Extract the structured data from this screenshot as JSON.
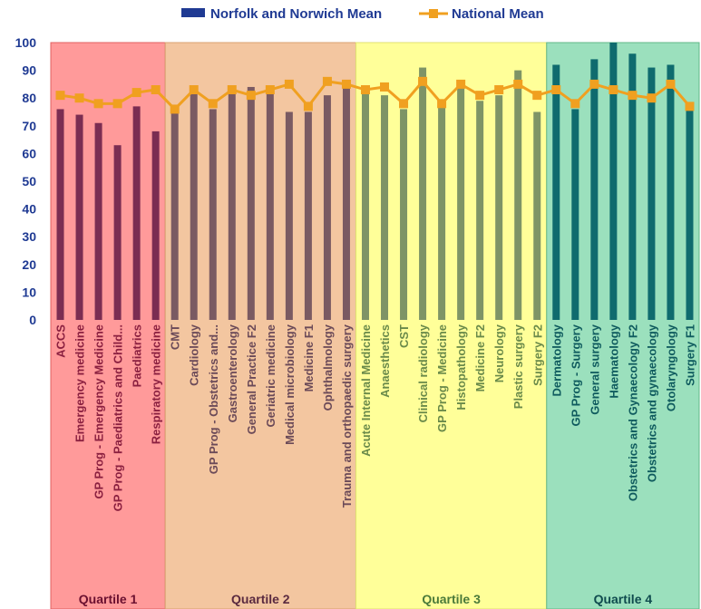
{
  "chart_data": {
    "type": "bar",
    "title": "",
    "xlabel": "",
    "ylabel": "",
    "ylim": [
      0,
      100
    ],
    "yticks": [
      0,
      10,
      20,
      30,
      40,
      50,
      60,
      70,
      80,
      90,
      100
    ],
    "grid": false,
    "legend_position": "top",
    "categories": [
      "ACCS",
      "Emergency medicine",
      "GP Prog - Emergency Medicine",
      "GP Prog - Paediatrics and Child...",
      "Paediatrics",
      "Respiratory medicine",
      "CMT",
      "Cardiology",
      "GP Prog - Obstetrics and...",
      "Gastroenterology",
      "General Practice F2",
      "Geriatric medicine",
      "Medical microbiology",
      "Medicine F1",
      "Ophthalmology",
      "Trauma and orthopaedic surgery",
      "Acute Internal Medicine",
      "Anaesthetics",
      "CST",
      "Clinical radiology",
      "GP Prog - Medicine",
      "Histopathology",
      "Medicine F2",
      "Neurology",
      "Plastic surgery",
      "Surgery F2",
      "Dermatology",
      "GP Prog - Surgery",
      "General surgery",
      "Haematology",
      "Obstetrics and Gynaecology F2",
      "Obstetrics and gynaecology",
      "Otolaryngology",
      "Surgery F1"
    ],
    "series": [
      {
        "name": "Norfolk and Norwich Mean",
        "type": "bar",
        "values": [
          76,
          74,
          71,
          63,
          77,
          68,
          75,
          82,
          76,
          82,
          84,
          82,
          75,
          75,
          81,
          84,
          82,
          81,
          76,
          91,
          78,
          84,
          79,
          81,
          90,
          75,
          92,
          76,
          94,
          100,
          96,
          91,
          92,
          77
        ]
      },
      {
        "name": "National Mean",
        "type": "line",
        "values": [
          81,
          80,
          78,
          78,
          82,
          83,
          76,
          83,
          78,
          83,
          81,
          83,
          85,
          77,
          86,
          85,
          83,
          84,
          78,
          86,
          78,
          85,
          81,
          83,
          85,
          81,
          83,
          78,
          85,
          83,
          81,
          80,
          85,
          77
        ]
      }
    ],
    "quartiles": [
      {
        "label": "Quartile 1",
        "start": 0,
        "end": 5
      },
      {
        "label": "Quartile 2",
        "start": 6,
        "end": 15
      },
      {
        "label": "Quartile 3",
        "start": 16,
        "end": 25
      },
      {
        "label": "Quartile 4",
        "start": 26,
        "end": 33
      }
    ]
  },
  "colors": {
    "quartile_backgrounds": [
      "#ff9a9a",
      "#f3c6a0",
      "#ffff99",
      "#9be0bd"
    ],
    "quartile_borders": [
      "#e06060",
      "#d8a070",
      "#e0e070",
      "#60b888"
    ],
    "bar_colors": [
      "#7b2d52",
      "#7a5a62",
      "#7e9466",
      "#0f6b6e"
    ],
    "label_colors": [
      "#8b2040",
      "#6b4a58",
      "#6a8a4a",
      "#0f5b5e"
    ],
    "quartile_label_colors": [
      "#6a1030",
      "#5a2a40",
      "#4a7a3a",
      "#0f4b4e"
    ],
    "legend_bar": "#1f3a93",
    "line": "#f0a020",
    "axis_text": "#1f3a93"
  }
}
